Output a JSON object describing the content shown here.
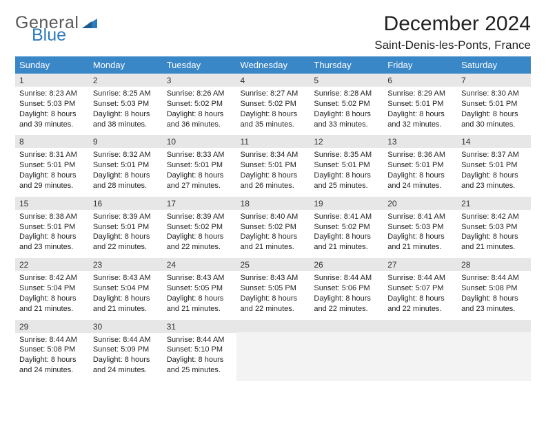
{
  "brand": {
    "part1": "General",
    "part2": "Blue"
  },
  "header": {
    "title": "December 2024",
    "location": "Saint-Denis-les-Ponts, France"
  },
  "colors": {
    "header_bg": "#3a87c8",
    "header_text": "#ffffff",
    "daynum_bg": "#e7e7e7",
    "cell_border": "#3a7bb0",
    "empty_bg": "#f3f3f3",
    "logo_gray": "#5a5a5a",
    "logo_blue": "#2b7bbd"
  },
  "dayNames": [
    "Sunday",
    "Monday",
    "Tuesday",
    "Wednesday",
    "Thursday",
    "Friday",
    "Saturday"
  ],
  "weeks": [
    [
      {
        "n": "1",
        "sr": "8:23 AM",
        "ss": "5:03 PM",
        "dl": "8 hours and 39 minutes."
      },
      {
        "n": "2",
        "sr": "8:25 AM",
        "ss": "5:03 PM",
        "dl": "8 hours and 38 minutes."
      },
      {
        "n": "3",
        "sr": "8:26 AM",
        "ss": "5:02 PM",
        "dl": "8 hours and 36 minutes."
      },
      {
        "n": "4",
        "sr": "8:27 AM",
        "ss": "5:02 PM",
        "dl": "8 hours and 35 minutes."
      },
      {
        "n": "5",
        "sr": "8:28 AM",
        "ss": "5:02 PM",
        "dl": "8 hours and 33 minutes."
      },
      {
        "n": "6",
        "sr": "8:29 AM",
        "ss": "5:01 PM",
        "dl": "8 hours and 32 minutes."
      },
      {
        "n": "7",
        "sr": "8:30 AM",
        "ss": "5:01 PM",
        "dl": "8 hours and 30 minutes."
      }
    ],
    [
      {
        "n": "8",
        "sr": "8:31 AM",
        "ss": "5:01 PM",
        "dl": "8 hours and 29 minutes."
      },
      {
        "n": "9",
        "sr": "8:32 AM",
        "ss": "5:01 PM",
        "dl": "8 hours and 28 minutes."
      },
      {
        "n": "10",
        "sr": "8:33 AM",
        "ss": "5:01 PM",
        "dl": "8 hours and 27 minutes."
      },
      {
        "n": "11",
        "sr": "8:34 AM",
        "ss": "5:01 PM",
        "dl": "8 hours and 26 minutes."
      },
      {
        "n": "12",
        "sr": "8:35 AM",
        "ss": "5:01 PM",
        "dl": "8 hours and 25 minutes."
      },
      {
        "n": "13",
        "sr": "8:36 AM",
        "ss": "5:01 PM",
        "dl": "8 hours and 24 minutes."
      },
      {
        "n": "14",
        "sr": "8:37 AM",
        "ss": "5:01 PM",
        "dl": "8 hours and 23 minutes."
      }
    ],
    [
      {
        "n": "15",
        "sr": "8:38 AM",
        "ss": "5:01 PM",
        "dl": "8 hours and 23 minutes."
      },
      {
        "n": "16",
        "sr": "8:39 AM",
        "ss": "5:01 PM",
        "dl": "8 hours and 22 minutes."
      },
      {
        "n": "17",
        "sr": "8:39 AM",
        "ss": "5:02 PM",
        "dl": "8 hours and 22 minutes."
      },
      {
        "n": "18",
        "sr": "8:40 AM",
        "ss": "5:02 PM",
        "dl": "8 hours and 21 minutes."
      },
      {
        "n": "19",
        "sr": "8:41 AM",
        "ss": "5:02 PM",
        "dl": "8 hours and 21 minutes."
      },
      {
        "n": "20",
        "sr": "8:41 AM",
        "ss": "5:03 PM",
        "dl": "8 hours and 21 minutes."
      },
      {
        "n": "21",
        "sr": "8:42 AM",
        "ss": "5:03 PM",
        "dl": "8 hours and 21 minutes."
      }
    ],
    [
      {
        "n": "22",
        "sr": "8:42 AM",
        "ss": "5:04 PM",
        "dl": "8 hours and 21 minutes."
      },
      {
        "n": "23",
        "sr": "8:43 AM",
        "ss": "5:04 PM",
        "dl": "8 hours and 21 minutes."
      },
      {
        "n": "24",
        "sr": "8:43 AM",
        "ss": "5:05 PM",
        "dl": "8 hours and 21 minutes."
      },
      {
        "n": "25",
        "sr": "8:43 AM",
        "ss": "5:05 PM",
        "dl": "8 hours and 22 minutes."
      },
      {
        "n": "26",
        "sr": "8:44 AM",
        "ss": "5:06 PM",
        "dl": "8 hours and 22 minutes."
      },
      {
        "n": "27",
        "sr": "8:44 AM",
        "ss": "5:07 PM",
        "dl": "8 hours and 22 minutes."
      },
      {
        "n": "28",
        "sr": "8:44 AM",
        "ss": "5:08 PM",
        "dl": "8 hours and 23 minutes."
      }
    ],
    [
      {
        "n": "29",
        "sr": "8:44 AM",
        "ss": "5:08 PM",
        "dl": "8 hours and 24 minutes."
      },
      {
        "n": "30",
        "sr": "8:44 AM",
        "ss": "5:09 PM",
        "dl": "8 hours and 24 minutes."
      },
      {
        "n": "31",
        "sr": "8:44 AM",
        "ss": "5:10 PM",
        "dl": "8 hours and 25 minutes."
      },
      null,
      null,
      null,
      null
    ]
  ],
  "labels": {
    "sunrise": "Sunrise:",
    "sunset": "Sunset:",
    "daylight": "Daylight:"
  }
}
